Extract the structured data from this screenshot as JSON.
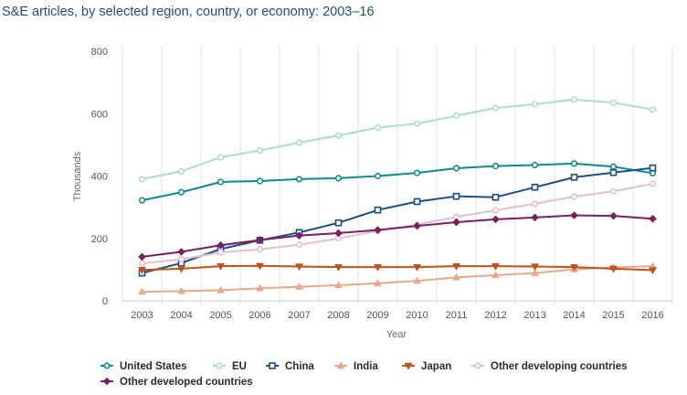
{
  "chart_data": {
    "type": "line",
    "title": "S&E articles, by selected region, country, or economy: 2003–16",
    "xlabel": "Year",
    "ylabel": "Thousands",
    "ylim": [
      0,
      800
    ],
    "yticks": [
      0,
      200,
      400,
      600,
      800
    ],
    "categories": [
      "2003",
      "2004",
      "2005",
      "2006",
      "2007",
      "2008",
      "2009",
      "2010",
      "2011",
      "2012",
      "2013",
      "2014",
      "2015",
      "2016"
    ],
    "grid": "vertical",
    "legend_position": "bottom",
    "series": [
      {
        "name": "United States",
        "color": "#0d8b8e",
        "marker": "circle",
        "values": [
          322,
          348,
          381,
          384,
          390,
          393,
          400,
          410,
          425,
          432,
          435,
          440,
          430,
          409
        ]
      },
      {
        "name": "EU",
        "color": "#a8dcd4",
        "marker": "circle",
        "values": [
          390,
          415,
          460,
          482,
          507,
          530,
          555,
          568,
          593,
          618,
          630,
          645,
          635,
          613
        ]
      },
      {
        "name": "China",
        "color": "#1a4e8a",
        "marker": "square",
        "values": [
          89,
          121,
          166,
          194,
          219,
          250,
          291,
          318,
          335,
          332,
          364,
          396,
          411,
          426
        ]
      },
      {
        "name": "India",
        "color": "#e8a98a",
        "marker": "triangle-up",
        "values": [
          29,
          31,
          34,
          40,
          45,
          50,
          56,
          64,
          75,
          82,
          89,
          101,
          107,
          111
        ]
      },
      {
        "name": "Japan",
        "color": "#c0521a",
        "marker": "triangle-down",
        "values": [
          99,
          103,
          111,
          112,
          110,
          108,
          108,
          108,
          111,
          111,
          110,
          108,
          103,
          98
        ]
      },
      {
        "name": "Other developing countries",
        "color": "#e2bfcd",
        "marker": "circle",
        "values": [
          120,
          133,
          155,
          165,
          180,
          200,
          224,
          244,
          269,
          290,
          311,
          334,
          351,
          375
        ]
      },
      {
        "name": "Other developed countries",
        "color": "#7a1f5f",
        "marker": "diamond",
        "values": [
          141,
          157,
          178,
          195,
          209,
          217,
          227,
          240,
          252,
          261,
          267,
          274,
          272,
          263
        ]
      }
    ]
  }
}
